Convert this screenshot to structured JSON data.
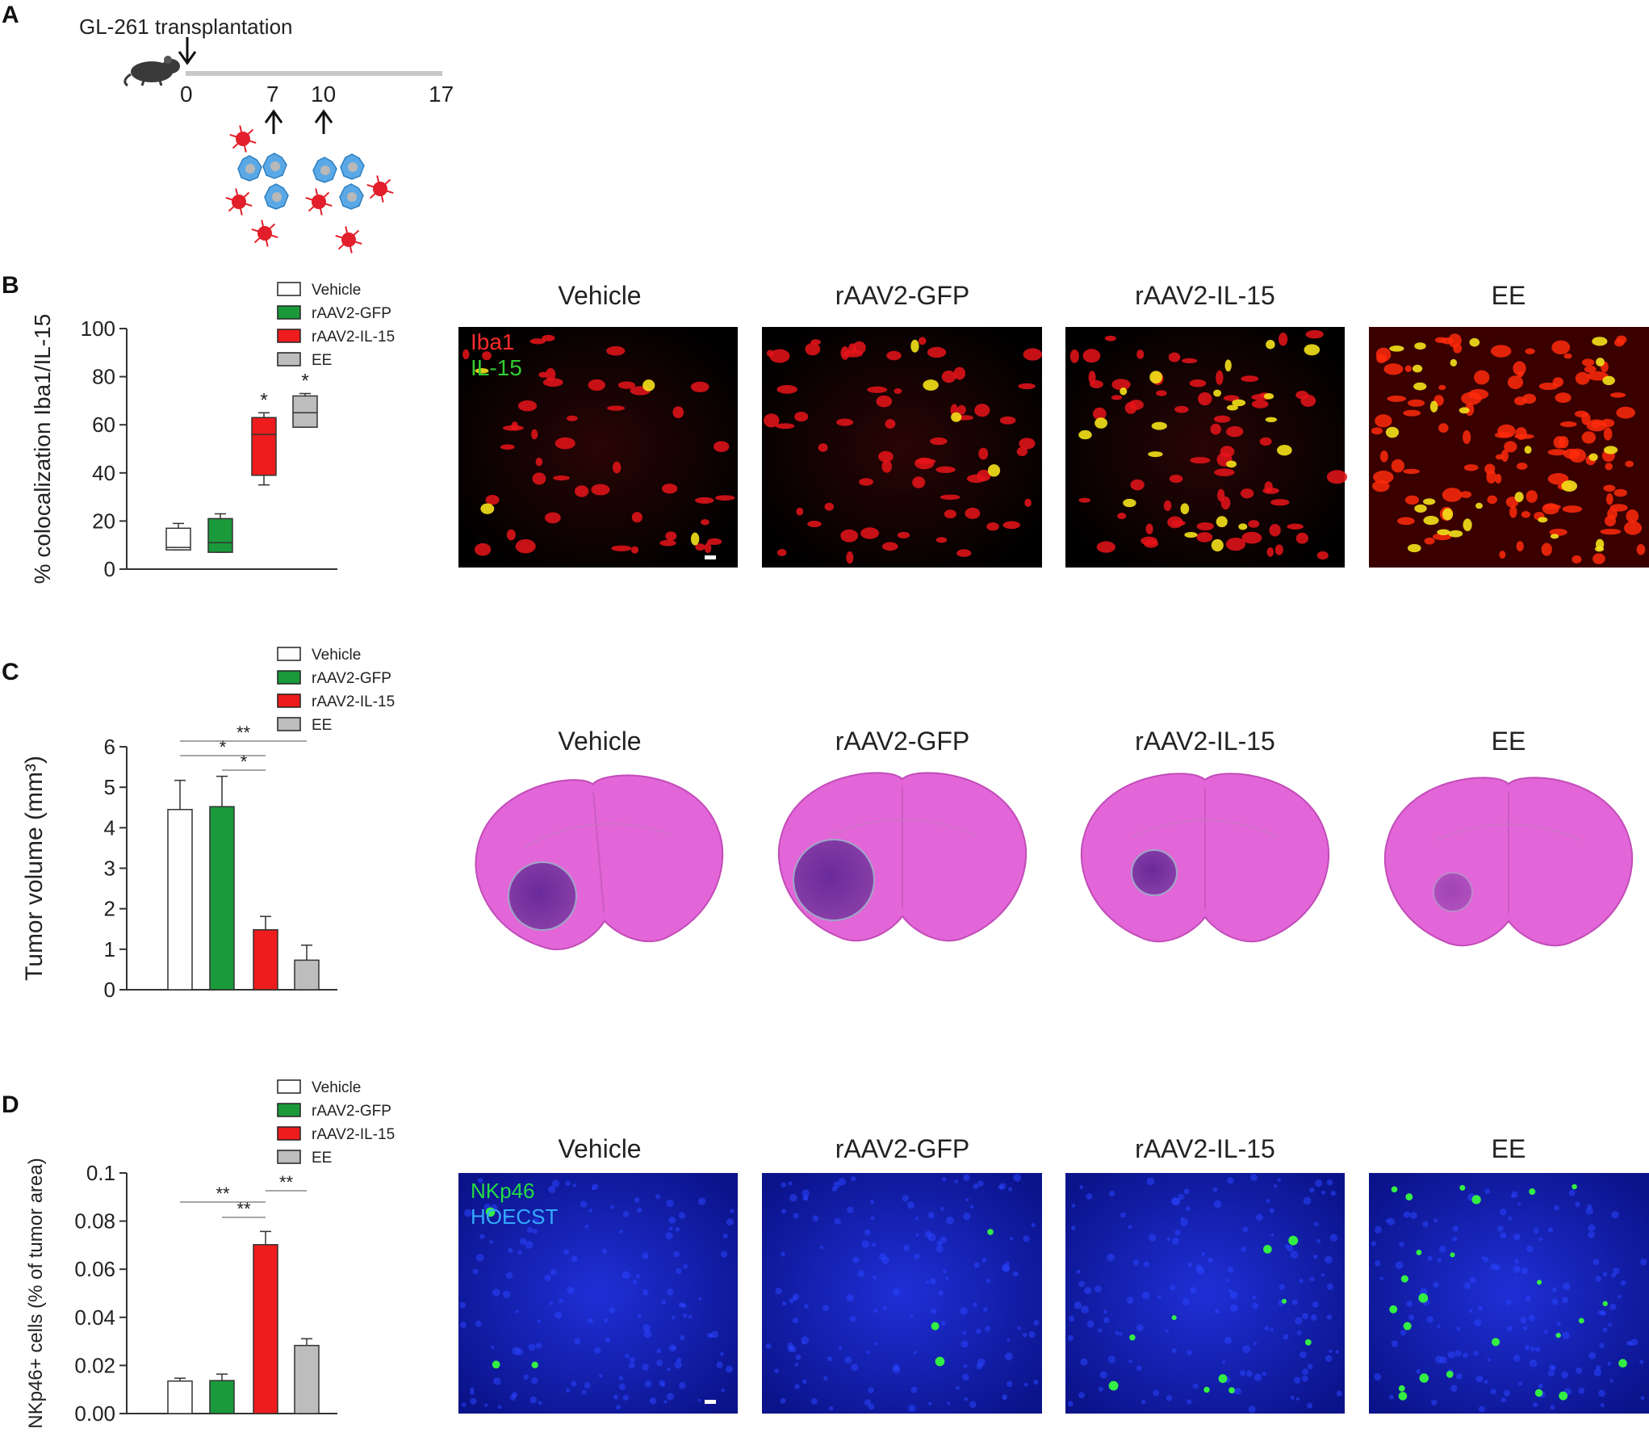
{
  "panel_letters": [
    "A",
    "B",
    "C",
    "D"
  ],
  "panel_a": {
    "event_label": "GL-261 transplantation",
    "day_labels": [
      "0",
      "7",
      "10",
      "17"
    ]
  },
  "group_labels": [
    "Vehicle",
    "rAAV2-GFP",
    "rAAV2-IL-15",
    "EE"
  ],
  "group_colors": [
    "#ffffff",
    "#1a9a3a",
    "#ee1c1c",
    "#bdbdbd"
  ],
  "panel_b": {
    "stain_labels": [
      "Iba1",
      "IL-15"
    ],
    "stain_colors": [
      "#ff3030",
      "#33cc33"
    ]
  },
  "panel_d": {
    "stain_labels": [
      "NKp46",
      "HOECST"
    ],
    "stain_colors": [
      "#22dd44",
      "#33aaff"
    ]
  },
  "chart_data": [
    {
      "type": "box",
      "panel": "B",
      "ylabel": "% colocalization Iba1/IL-15",
      "ylim": [
        0,
        100
      ],
      "yticks": [
        "0",
        "20",
        "40",
        "60",
        "80",
        "100"
      ],
      "categories": [
        "Vehicle",
        "rAAV2-GFP",
        "rAAV2-IL-15",
        "EE"
      ],
      "boxes": [
        {
          "min": 8,
          "q1": 8,
          "median": 9,
          "q3": 17,
          "max": 19
        },
        {
          "min": 7,
          "q1": 7,
          "median": 11,
          "q3": 21,
          "max": 23
        },
        {
          "min": 35,
          "q1": 39,
          "median": 56,
          "q3": 63,
          "max": 65
        },
        {
          "min": 59,
          "q1": 59,
          "median": 65,
          "q3": 72,
          "max": 73
        }
      ],
      "significance": [
        {
          "category": "rAAV2-IL-15",
          "label": "*"
        },
        {
          "category": "EE",
          "label": "*"
        }
      ]
    },
    {
      "type": "bar",
      "panel": "C",
      "ylabel": "Tumor volume (mm³)",
      "ylim": [
        0,
        6
      ],
      "yticks": [
        "0",
        "1",
        "2",
        "3",
        "4",
        "5",
        "6"
      ],
      "categories": [
        "Vehicle",
        "rAAV2-GFP",
        "rAAV2-IL-15",
        "EE"
      ],
      "values": [
        4.45,
        4.52,
        1.48,
        0.73
      ],
      "errors": [
        0.72,
        0.75,
        0.33,
        0.37
      ],
      "brackets": [
        {
          "from": 0,
          "to": 3,
          "label": "**"
        },
        {
          "from": 0,
          "to": 2,
          "label": "*"
        },
        {
          "from": 1,
          "to": 2,
          "label": "*"
        }
      ]
    },
    {
      "type": "bar",
      "panel": "D",
      "ylabel": "NKp46+ cells (% of tumor area)",
      "ylim": [
        0,
        0.1
      ],
      "yticks": [
        "0.00",
        "0.02",
        "0.04",
        "0.06",
        "0.08",
        "0.1"
      ],
      "categories": [
        "Vehicle",
        "rAAV2-GFP",
        "rAAV2-IL-15",
        "EE"
      ],
      "values": [
        0.0135,
        0.0137,
        0.0702,
        0.0283
      ],
      "errors": [
        0.0012,
        0.0027,
        0.0055,
        0.0028
      ],
      "brackets": [
        {
          "from": 0,
          "to": 2,
          "label": "**"
        },
        {
          "from": 1,
          "to": 2,
          "label": "**"
        },
        {
          "from": 2,
          "to": 3,
          "label": "**"
        }
      ]
    }
  ]
}
